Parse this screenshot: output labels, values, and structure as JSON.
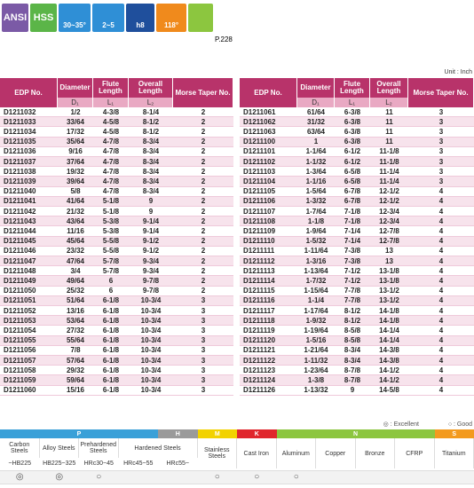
{
  "badges": [
    "ANSI",
    "HSS",
    "30~35°",
    "2~5",
    "h8",
    "118°"
  ],
  "page_ref": "P.228",
  "unit": "Unit : Inch",
  "tables": [
    {
      "header": [
        "EDP No.",
        "Diameter",
        "Flute Length",
        "Overall Length",
        "Morse Taper No."
      ],
      "sub": [
        "D₁",
        "L₁",
        "L₂"
      ],
      "rows": [
        [
          "D1211032",
          "1/2",
          "4-3/8",
          "8-1/4",
          "2"
        ],
        [
          "D1211033",
          "33/64",
          "4-5/8",
          "8-1/2",
          "2"
        ],
        [
          "D1211034",
          "17/32",
          "4-5/8",
          "8-1/2",
          "2"
        ],
        [
          "D1211035",
          "35/64",
          "4-7/8",
          "8-3/4",
          "2"
        ],
        [
          "D1211036",
          "9/16",
          "4-7/8",
          "8-3/4",
          "2"
        ],
        [
          "D1211037",
          "37/64",
          "4-7/8",
          "8-3/4",
          "2"
        ],
        [
          "D1211038",
          "19/32",
          "4-7/8",
          "8-3/4",
          "2"
        ],
        [
          "D1211039",
          "39/64",
          "4-7/8",
          "8-3/4",
          "2"
        ],
        [
          "D1211040",
          "5/8",
          "4-7/8",
          "8-3/4",
          "2"
        ],
        [
          "D1211041",
          "41/64",
          "5-1/8",
          "9",
          "2"
        ],
        [
          "D1211042",
          "21/32",
          "5-1/8",
          "9",
          "2"
        ],
        [
          "D1211043",
          "43/64",
          "5-3/8",
          "9-1/4",
          "2"
        ],
        [
          "D1211044",
          "11/16",
          "5-3/8",
          "9-1/4",
          "2"
        ],
        [
          "D1211045",
          "45/64",
          "5-5/8",
          "9-1/2",
          "2"
        ],
        [
          "D1211046",
          "23/32",
          "5-5/8",
          "9-1/2",
          "2"
        ],
        [
          "D1211047",
          "47/64",
          "5-7/8",
          "9-3/4",
          "2"
        ],
        [
          "D1211048",
          "3/4",
          "5-7/8",
          "9-3/4",
          "2"
        ],
        [
          "D1211049",
          "49/64",
          "6",
          "9-7/8",
          "2"
        ],
        [
          "D1211050",
          "25/32",
          "6",
          "9-7/8",
          "2"
        ],
        [
          "D1211051",
          "51/64",
          "6-1/8",
          "10-3/4",
          "3"
        ],
        [
          "D1211052",
          "13/16",
          "6-1/8",
          "10-3/4",
          "3"
        ],
        [
          "D1211053",
          "53/64",
          "6-1/8",
          "10-3/4",
          "3"
        ],
        [
          "D1211054",
          "27/32",
          "6-1/8",
          "10-3/4",
          "3"
        ],
        [
          "D1211055",
          "55/64",
          "6-1/8",
          "10-3/4",
          "3"
        ],
        [
          "D1211056",
          "7/8",
          "6-1/8",
          "10-3/4",
          "3"
        ],
        [
          "D1211057",
          "57/64",
          "6-1/8",
          "10-3/4",
          "3"
        ],
        [
          "D1211058",
          "29/32",
          "6-1/8",
          "10-3/4",
          "3"
        ],
        [
          "D1211059",
          "59/64",
          "6-1/8",
          "10-3/4",
          "3"
        ],
        [
          "D1211060",
          "15/16",
          "6-1/8",
          "10-3/4",
          "3"
        ]
      ]
    },
    {
      "header": [
        "EDP No.",
        "Diameter",
        "Flute Length",
        "Overall Length",
        "Morse Taper No."
      ],
      "sub": [
        "D₁",
        "L₁",
        "L₂"
      ],
      "rows": [
        [
          "D1211061",
          "61/64",
          "6-3/8",
          "11",
          "3"
        ],
        [
          "D1211062",
          "31/32",
          "6-3/8",
          "11",
          "3"
        ],
        [
          "D1211063",
          "63/64",
          "6-3/8",
          "11",
          "3"
        ],
        [
          "D1211100",
          "1",
          "6-3/8",
          "11",
          "3"
        ],
        [
          "D1211101",
          "1-1/64",
          "6-1/2",
          "11-1/8",
          "3"
        ],
        [
          "D1211102",
          "1-1/32",
          "6-1/2",
          "11-1/8",
          "3"
        ],
        [
          "D1211103",
          "1-3/64",
          "6-5/8",
          "11-1/4",
          "3"
        ],
        [
          "D1211104",
          "1-1/16",
          "6-5/8",
          "11-1/4",
          "3"
        ],
        [
          "D1211105",
          "1-5/64",
          "6-7/8",
          "12-1/2",
          "4"
        ],
        [
          "D1211106",
          "1-3/32",
          "6-7/8",
          "12-1/2",
          "4"
        ],
        [
          "D1211107",
          "1-7/64",
          "7-1/8",
          "12-3/4",
          "4"
        ],
        [
          "D1211108",
          "1-1/8",
          "7-1/8",
          "12-3/4",
          "4"
        ],
        [
          "D1211109",
          "1-9/64",
          "7-1/4",
          "12-7/8",
          "4"
        ],
        [
          "D1211110",
          "1-5/32",
          "7-1/4",
          "12-7/8",
          "4"
        ],
        [
          "D1211111",
          "1-11/64",
          "7-3/8",
          "13",
          "4"
        ],
        [
          "D1211112",
          "1-3/16",
          "7-3/8",
          "13",
          "4"
        ],
        [
          "D1211113",
          "1-13/64",
          "7-1/2",
          "13-1/8",
          "4"
        ],
        [
          "D1211114",
          "1-7/32",
          "7-1/2",
          "13-1/8",
          "4"
        ],
        [
          "D1211115",
          "1-15/64",
          "7-7/8",
          "13-1/2",
          "4"
        ],
        [
          "D1211116",
          "1-1/4",
          "7-7/8",
          "13-1/2",
          "4"
        ],
        [
          "D1211117",
          "1-17/64",
          "8-1/2",
          "14-1/8",
          "4"
        ],
        [
          "D1211118",
          "1-9/32",
          "8-1/2",
          "14-1/8",
          "4"
        ],
        [
          "D1211119",
          "1-19/64",
          "8-5/8",
          "14-1/4",
          "4"
        ],
        [
          "D1211120",
          "1-5/16",
          "8-5/8",
          "14-1/4",
          "4"
        ],
        [
          "D1211121",
          "1-21/64",
          "8-3/4",
          "14-3/8",
          "4"
        ],
        [
          "D1211122",
          "1-11/32",
          "8-3/4",
          "14-3/8",
          "4"
        ],
        [
          "D1211123",
          "1-23/64",
          "8-7/8",
          "14-1/2",
          "4"
        ],
        [
          "D1211124",
          "1-3/8",
          "8-7/8",
          "14-1/2",
          "4"
        ],
        [
          "D1211126",
          "1-13/32",
          "9",
          "14-5/8",
          "4"
        ]
      ]
    }
  ],
  "materials": {
    "legend": [
      "◎ : Excellent",
      "○ : Good"
    ],
    "groups": [
      {
        "label": "P",
        "color": "#3aa0d8",
        "span": 4
      },
      {
        "label": "H",
        "color": "#9a9a9a",
        "span": 1
      },
      {
        "label": "M",
        "color": "#f2d200",
        "span": 1
      },
      {
        "label": "K",
        "color": "#e0262c",
        "span": 1
      },
      {
        "label": "N",
        "color": "#8cc63f",
        "span": 4
      },
      {
        "label": "S",
        "color": "#f39a1e",
        "span": 1
      }
    ],
    "names": [
      {
        "label": "Carbon Steels",
        "span": 1
      },
      {
        "label": "Alloy Steels",
        "span": 1
      },
      {
        "label": "Prehardened Steels",
        "span": 1
      },
      {
        "label": "Hardened Steels",
        "span": 2
      },
      {
        "label": "Stainless Steels",
        "span": 1
      },
      {
        "label": "Cast Iron",
        "span": 1
      },
      {
        "label": "Aluminum",
        "span": 1
      },
      {
        "label": "Copper",
        "span": 1
      },
      {
        "label": "Bronze",
        "span": 1
      },
      {
        "label": "CFRP",
        "span": 1
      },
      {
        "label": "Titanium",
        "span": 1
      }
    ],
    "subs": [
      "~HB225",
      "HB225~325",
      "HRc30~45",
      "HRc45~55",
      "HRc55~",
      null,
      null,
      null,
      null,
      null,
      null,
      null
    ],
    "ratings": [
      "◎",
      "◎",
      "○",
      null,
      null,
      "○",
      "○",
      "○",
      null,
      null,
      null,
      null
    ]
  }
}
